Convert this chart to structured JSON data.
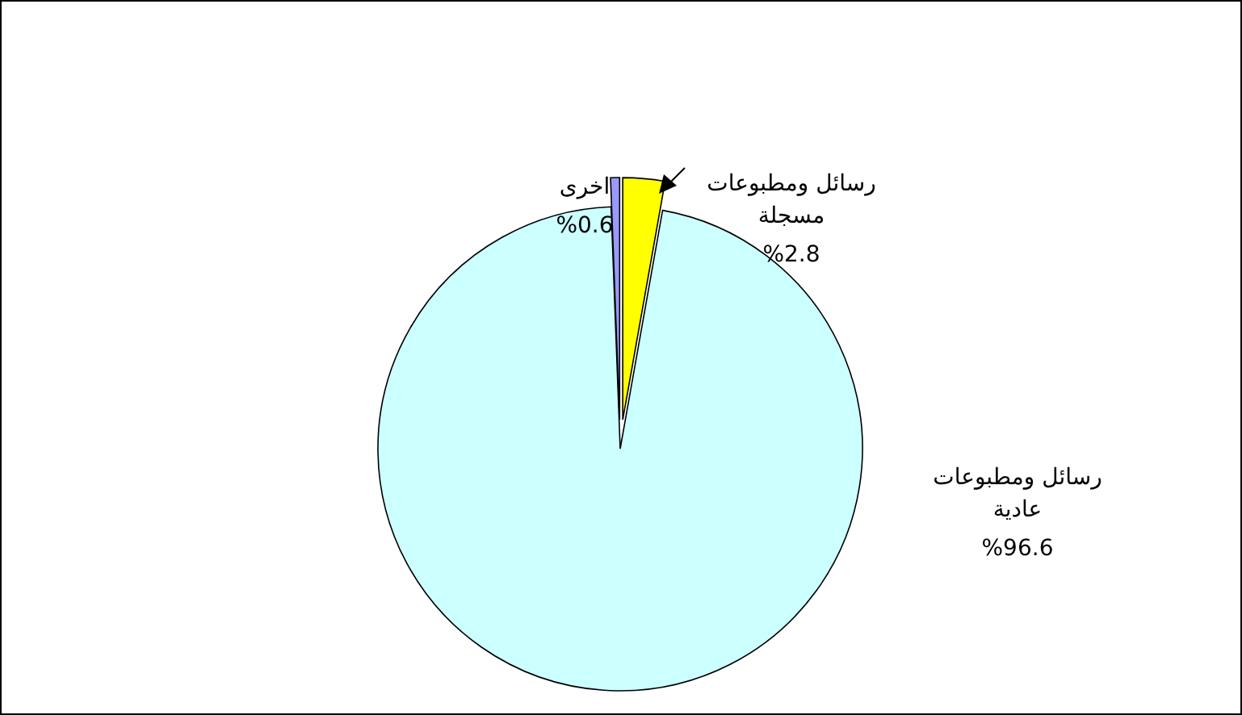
{
  "chart_data": {
    "type": "pie",
    "categories": [
      "رسائل ومطبوعات مسجلة",
      "رسائل ومطبوعات عادية",
      "اخرى"
    ],
    "values": [
      2.8,
      96.6,
      0.6
    ],
    "colors": [
      "#ffff00",
      "#ccffff",
      "#9999ff"
    ],
    "value_labels": [
      "%2.8",
      "%96.6",
      "%0.6"
    ]
  }
}
